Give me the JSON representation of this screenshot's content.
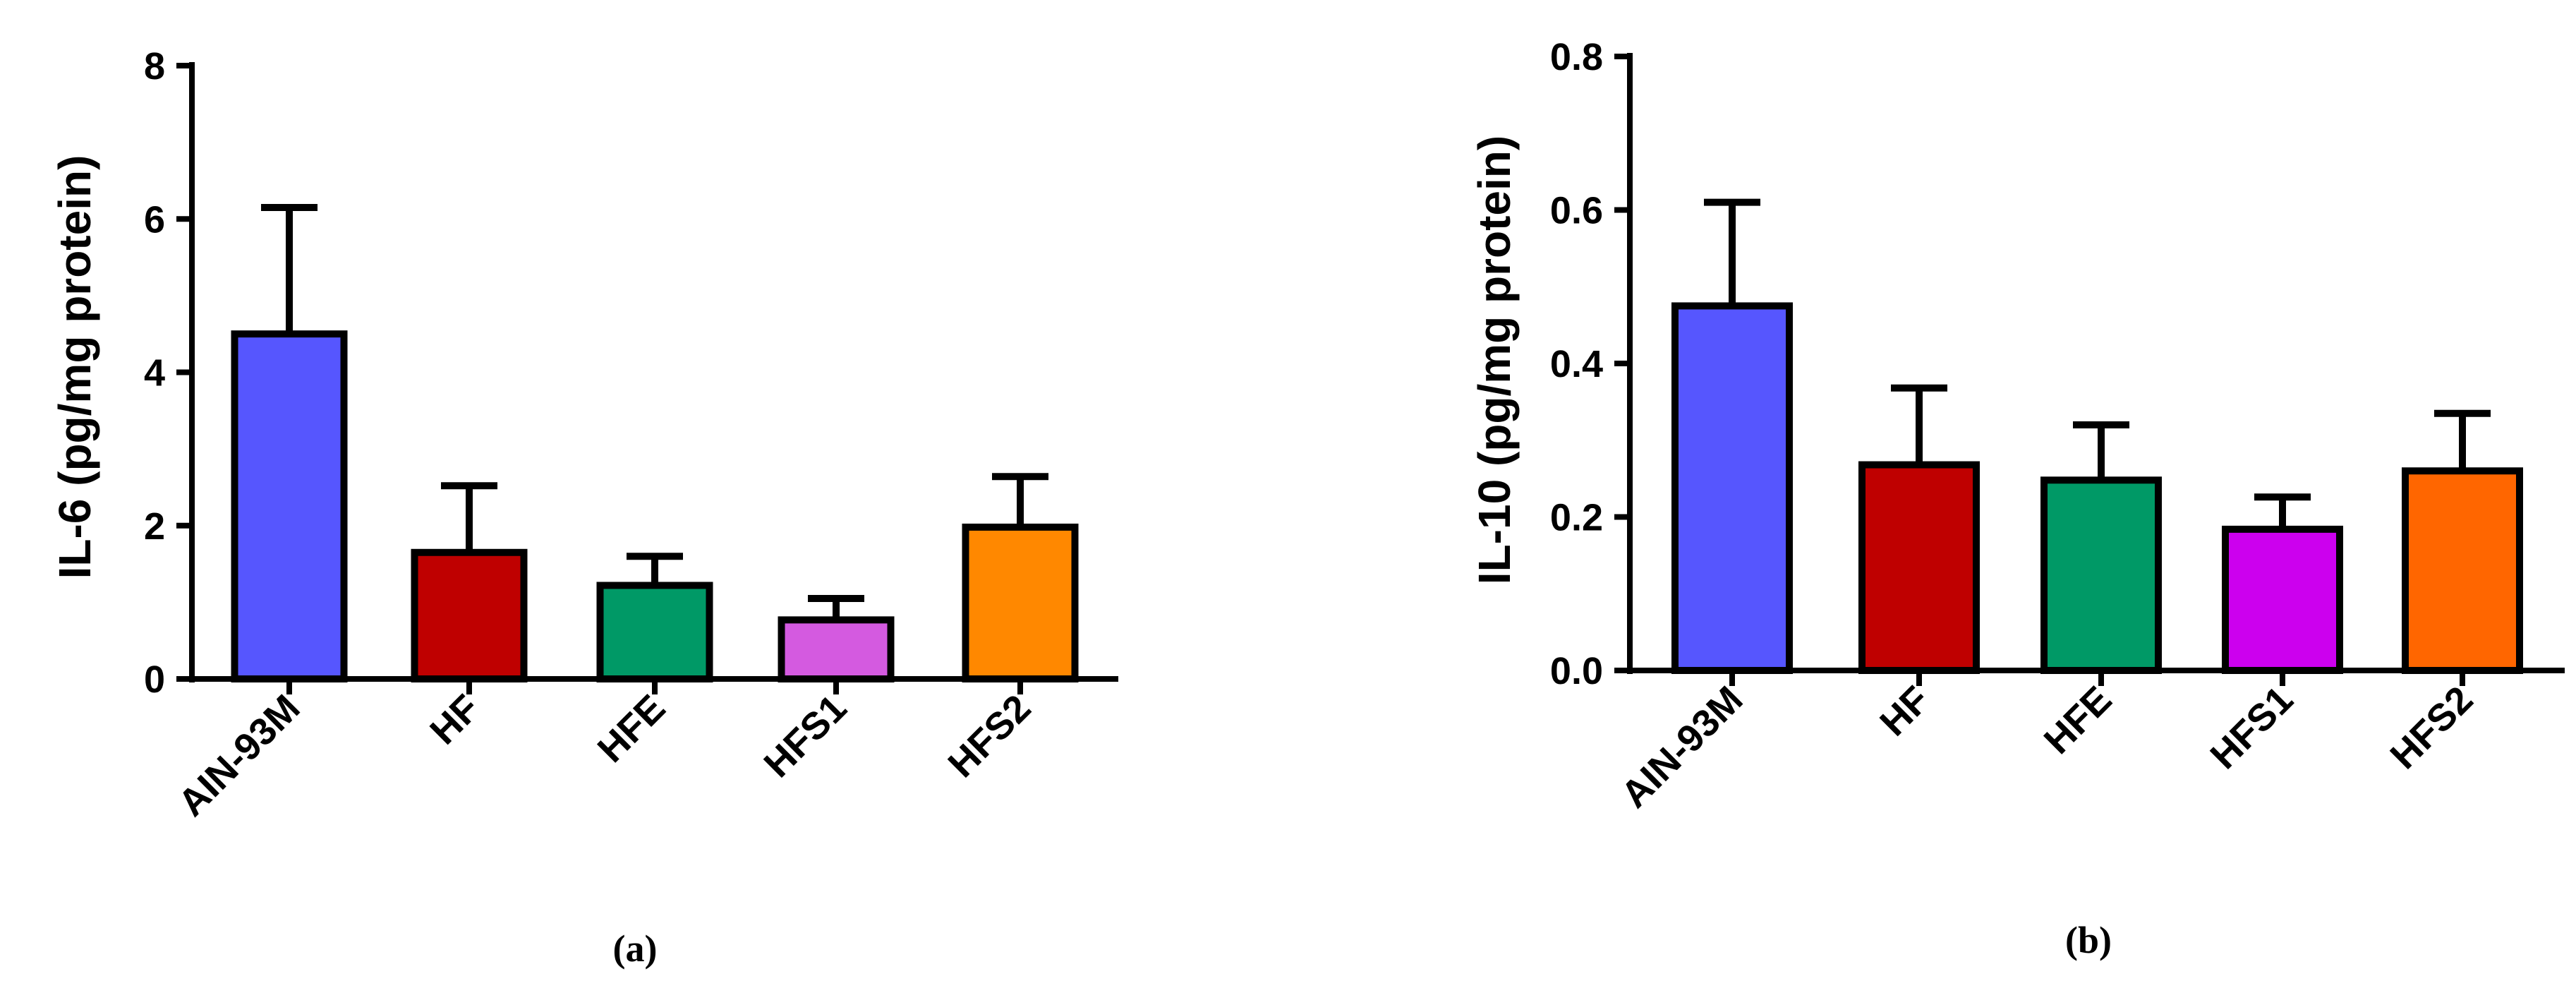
{
  "chart_data": [
    {
      "type": "bar",
      "panel_label": "(a)",
      "ylabel": "IL-6 (pg/mg protein)",
      "xlabel": "",
      "categories": [
        "AIN-93M",
        "HF",
        "HFE",
        "HFS1",
        "HFS2"
      ],
      "values": [
        4.5,
        1.65,
        1.22,
        0.77,
        1.98
      ],
      "errors": [
        1.65,
        0.87,
        0.38,
        0.28,
        0.66
      ],
      "colors": [
        "#5656fe",
        "#bf0000",
        "#009966",
        "#d45ae0",
        "#ff8800"
      ],
      "ylim": [
        0,
        8
      ],
      "yticks": [
        "0",
        "2",
        "4",
        "6",
        "8"
      ],
      "ytick_values": [
        0,
        2,
        4,
        6,
        8
      ],
      "grid": false,
      "legend": "none"
    },
    {
      "type": "bar",
      "panel_label": "(b)",
      "ylabel": "IL-10 (pg/mg protein)",
      "xlabel": "",
      "categories": [
        "AIN-93M",
        "HF",
        "HFE",
        "HFS1",
        "HFS2"
      ],
      "values": [
        0.475,
        0.268,
        0.248,
        0.184,
        0.26
      ],
      "errors": [
        0.135,
        0.1,
        0.072,
        0.042,
        0.075
      ],
      "colors": [
        "#5656fe",
        "#bf0000",
        "#009966",
        "#cc00ee",
        "#ff6600"
      ],
      "ylim": [
        0,
        0.8
      ],
      "yticks": [
        "0.0",
        "0.2",
        "0.4",
        "0.6",
        "0.8"
      ],
      "ytick_values": [
        0,
        0.2,
        0.4,
        0.6,
        0.8
      ],
      "grid": false,
      "legend": "none"
    }
  ]
}
